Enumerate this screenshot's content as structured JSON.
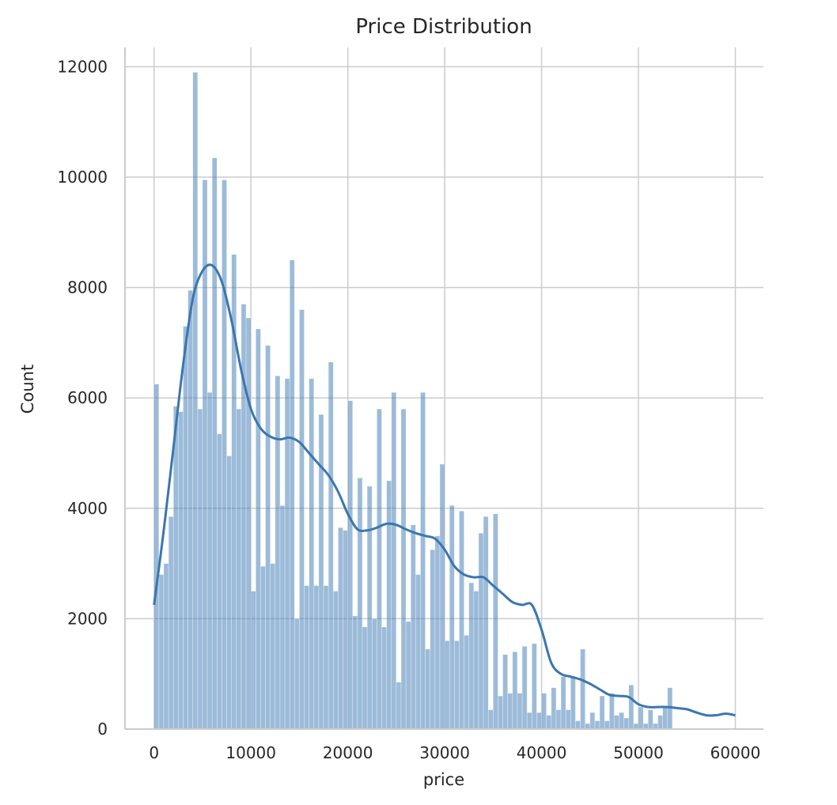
{
  "chart_data": {
    "type": "bar",
    "title": "Price Distribution",
    "xlabel": "price",
    "ylabel": "Count",
    "xlim": [
      -3000,
      62900
    ],
    "ylim": [
      0,
      12350
    ],
    "xticks": [
      0,
      10000,
      20000,
      30000,
      40000,
      50000,
      60000
    ],
    "yticks": [
      0,
      2000,
      4000,
      6000,
      8000,
      10000,
      12000
    ],
    "grid": true,
    "bin_start": 0,
    "bin_width": 500,
    "bar_color": "#3a78b4",
    "kde_color": "#3a76b0",
    "values": [
      6250,
      2800,
      3000,
      3850,
      5850,
      5750,
      7300,
      7950,
      11900,
      5800,
      9950,
      6100,
      10350,
      5350,
      9950,
      4950,
      8600,
      5800,
      7700,
      7450,
      2500,
      7250,
      2950,
      6950,
      3000,
      6400,
      4050,
      6350,
      8500,
      2000,
      7600,
      2600,
      6350,
      2600,
      5700,
      2600,
      6650,
      2500,
      3650,
      3600,
      5950,
      2050,
      4550,
      1850,
      4400,
      2000,
      5800,
      1850,
      4500,
      6100,
      850,
      5800,
      1950,
      3700,
      2800,
      6100,
      1450,
      3250,
      3500,
      4800,
      1600,
      4050,
      1600,
      3950,
      1700,
      2650,
      2500,
      3550,
      3850,
      350,
      3900,
      600,
      1350,
      650,
      1400,
      650,
      1500,
      300,
      1550,
      300,
      650,
      250,
      750,
      350,
      950,
      350,
      950,
      150,
      1450,
      100,
      300,
      150,
      600,
      150,
      650,
      250,
      300,
      200,
      800,
      100,
      400,
      100,
      350,
      100,
      250,
      400,
      750
    ],
    "kde": {
      "x": [
        0,
        1000,
        2000,
        3000,
        4000,
        5000,
        6000,
        7000,
        8000,
        9000,
        10000,
        11000,
        12000,
        13000,
        14000,
        15000,
        16000,
        17000,
        18000,
        19000,
        20000,
        21000,
        22000,
        23000,
        24000,
        25000,
        26000,
        27000,
        28000,
        29000,
        30000,
        31000,
        32000,
        33000,
        34000,
        35000,
        36000,
        37000,
        38000,
        39000,
        40000,
        41000,
        42000,
        43000,
        44000,
        45000,
        46000,
        47000,
        48000,
        49000,
        50000,
        51000,
        52000,
        53000,
        54000,
        55000,
        56000,
        57000,
        58000,
        59000,
        60000
      ],
      "y": [
        2250,
        3600,
        5100,
        6600,
        7800,
        8300,
        8400,
        8100,
        7400,
        6500,
        5800,
        5450,
        5300,
        5250,
        5280,
        5200,
        5000,
        4800,
        4600,
        4300,
        3900,
        3620,
        3600,
        3650,
        3720,
        3700,
        3620,
        3550,
        3500,
        3450,
        3250,
        2950,
        2800,
        2750,
        2750,
        2600,
        2450,
        2300,
        2250,
        2250,
        1800,
        1200,
        1000,
        950,
        900,
        820,
        720,
        620,
        600,
        580,
        450,
        400,
        400,
        400,
        380,
        360,
        300,
        250,
        250,
        280,
        250
      ]
    }
  }
}
